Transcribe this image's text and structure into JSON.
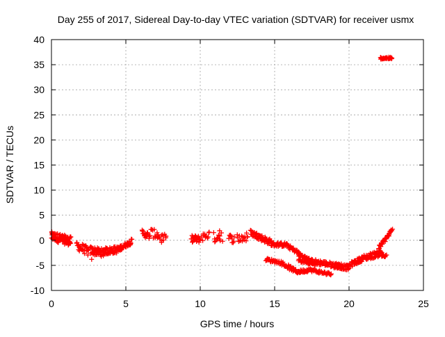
{
  "chart_data": {
    "type": "scatter",
    "title": "Day 255 of 2017, Sidereal Day-to-day VTEC variation (SDTVAR) for receiver usmx",
    "xlabel": "GPS time / hours",
    "ylabel": "SDTVAR / TECUs",
    "xlim": [
      0,
      25
    ],
    "ylim": [
      -10,
      40
    ],
    "xticks": [
      0,
      5,
      10,
      15,
      20,
      25
    ],
    "yticks": [
      -10,
      -5,
      0,
      5,
      10,
      15,
      20,
      25,
      30,
      35,
      40
    ],
    "grid": true,
    "marker": "+",
    "colors": {
      "points": "#ff0000",
      "grid": "#a0a0a0",
      "axes": "#000000"
    },
    "segments": [
      {
        "x0": 0.0,
        "x1": 1.3,
        "y0": 0.8,
        "y1": -0.2,
        "spread": 1.8,
        "n": 90
      },
      {
        "x0": 1.7,
        "x1": 2.5,
        "y0": -1.0,
        "y1": -2.3,
        "spread": 1.8,
        "n": 30
      },
      {
        "x0": 2.6,
        "x1": 3.5,
        "y0": -2.0,
        "y1": -2.5,
        "spread": 1.6,
        "n": 45
      },
      {
        "x0": 3.5,
        "x1": 4.6,
        "y0": -2.2,
        "y1": -1.8,
        "spread": 1.4,
        "n": 55
      },
      {
        "x0": 4.6,
        "x1": 5.4,
        "y0": -1.6,
        "y1": -0.2,
        "spread": 1.0,
        "n": 35
      },
      {
        "x0": 6.1,
        "x1": 6.6,
        "y0": 1.5,
        "y1": 0.8,
        "spread": 1.4,
        "n": 18
      },
      {
        "x0": 6.7,
        "x1": 7.7,
        "y0": 1.5,
        "y1": 0.2,
        "spread": 1.8,
        "n": 22
      },
      {
        "x0": 9.4,
        "x1": 10.0,
        "y0": 0.3,
        "y1": 0.2,
        "spread": 1.4,
        "n": 25
      },
      {
        "x0": 10.1,
        "x1": 10.6,
        "y0": 0.6,
        "y1": 1.2,
        "spread": 1.6,
        "n": 12
      },
      {
        "x0": 10.9,
        "x1": 11.4,
        "y0": 0.5,
        "y1": 1.0,
        "spread": 2.2,
        "n": 12
      },
      {
        "x0": 11.9,
        "x1": 12.3,
        "y0": 0.5,
        "y1": 0.2,
        "spread": 1.6,
        "n": 10
      },
      {
        "x0": 12.5,
        "x1": 13.2,
        "y0": 0.4,
        "y1": 0.6,
        "spread": 2.0,
        "n": 16
      },
      {
        "x0": 13.4,
        "x1": 14.8,
        "y0": 1.5,
        "y1": -0.5,
        "spread": 1.2,
        "n": 60
      },
      {
        "x0": 14.8,
        "x1": 15.8,
        "y0": -0.8,
        "y1": -0.9,
        "spread": 0.8,
        "n": 35
      },
      {
        "x0": 15.8,
        "x1": 16.6,
        "y0": -1.0,
        "y1": -2.5,
        "spread": 0.8,
        "n": 30
      },
      {
        "x0": 16.6,
        "x1": 17.5,
        "y0": -2.8,
        "y1": -4.2,
        "spread": 0.8,
        "n": 35
      },
      {
        "x0": 17.5,
        "x1": 19.5,
        "y0": -4.2,
        "y1": -5.2,
        "spread": 1.0,
        "n": 70
      },
      {
        "x0": 14.4,
        "x1": 15.5,
        "y0": -3.8,
        "y1": -4.5,
        "spread": 0.6,
        "n": 30
      },
      {
        "x0": 15.5,
        "x1": 16.5,
        "y0": -4.6,
        "y1": -6.3,
        "spread": 0.8,
        "n": 30
      },
      {
        "x0": 16.5,
        "x1": 17.2,
        "y0": -6.3,
        "y1": -6.0,
        "spread": 0.6,
        "n": 25
      },
      {
        "x0": 17.2,
        "x1": 18.8,
        "y0": -5.8,
        "y1": -6.8,
        "spread": 0.6,
        "n": 45
      },
      {
        "x0": 16.6,
        "x1": 17.8,
        "y0": -4.0,
        "y1": -4.8,
        "spread": 0.6,
        "n": 30
      },
      {
        "x0": 19.0,
        "x1": 20.0,
        "y0": -5.0,
        "y1": -5.5,
        "spread": 1.0,
        "n": 40
      },
      {
        "x0": 20.0,
        "x1": 21.0,
        "y0": -5.0,
        "y1": -3.5,
        "spread": 1.0,
        "n": 40
      },
      {
        "x0": 21.0,
        "x1": 22.2,
        "y0": -3.5,
        "y1": -2.5,
        "spread": 1.2,
        "n": 45
      },
      {
        "x0": 22.2,
        "x1": 22.5,
        "y0": -3.0,
        "y1": -3.2,
        "spread": 0.6,
        "n": 10
      },
      {
        "x0": 22.0,
        "x1": 22.9,
        "y0": -1.5,
        "y1": 2.0,
        "spread": 0.8,
        "n": 40
      },
      {
        "x0": 22.1,
        "x1": 22.9,
        "y0": 36.3,
        "y1": 36.3,
        "spread": 0.4,
        "n": 30
      }
    ],
    "points": [
      {
        "x": 7.1,
        "y": 1.5
      },
      {
        "x": 7.7,
        "y": 0.8
      },
      {
        "x": 7.4,
        "y": -0.4
      },
      {
        "x": 11.3,
        "y": 1.9
      },
      {
        "x": 11.5,
        "y": -0.2
      },
      {
        "x": 2.7,
        "y": -3.8
      },
      {
        "x": 1.2,
        "y": -0.6
      }
    ]
  }
}
